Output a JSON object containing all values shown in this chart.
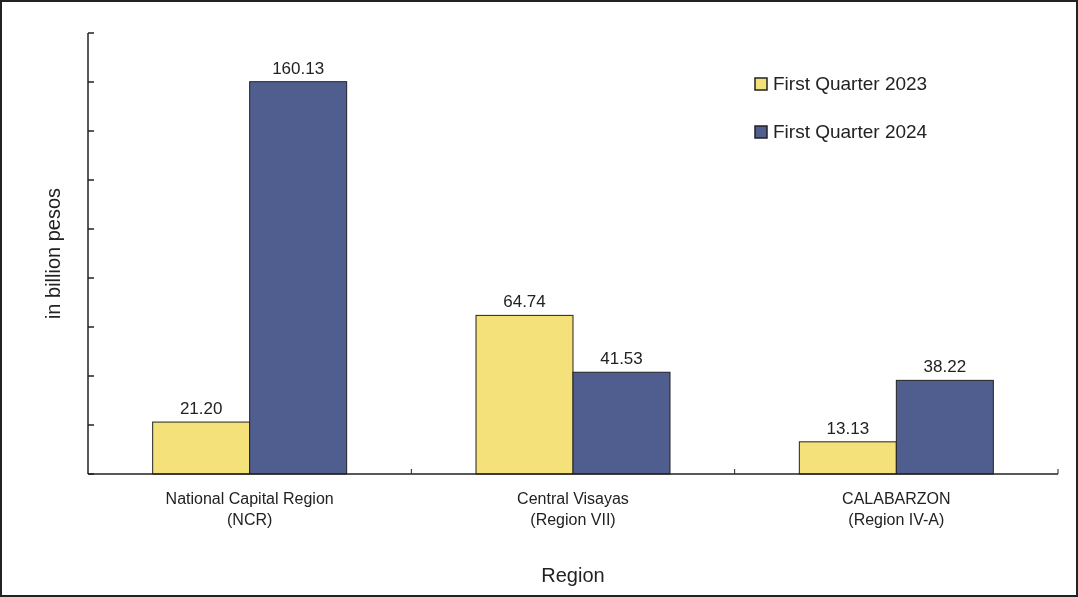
{
  "chart_data": {
    "type": "bar",
    "xlabel": "Region",
    "ylabel": "in billion pesos",
    "categories": [
      "National Capital Region\n(NCR)",
      "Central Visayas\n(Region VII)",
      "CALABARZON\n(Region IV-A)"
    ],
    "series": [
      {
        "name": "First Quarter 2023",
        "color": "#f5e17a",
        "values": [
          21.2,
          64.74,
          13.13
        ],
        "value_labels": [
          "21.20",
          "64.74",
          "13.13"
        ]
      },
      {
        "name": "First Quarter 2024",
        "color": "#4f5e8e",
        "values": [
          160.13,
          41.53,
          38.22
        ],
        "value_labels": [
          "160.13",
          "41.53",
          "38.22"
        ]
      }
    ],
    "ylim": [
      0,
      180
    ],
    "yticks": [
      {
        "value": 0,
        "label": null
      },
      {
        "value": 20,
        "label": null
      },
      {
        "value": 40,
        "label": null
      },
      {
        "value": 60,
        "label": null
      },
      {
        "value": 80,
        "label": null
      },
      {
        "value": 100,
        "label": null
      },
      {
        "value": 120,
        "label": null
      },
      {
        "value": 140,
        "label": null
      },
      {
        "value": 160,
        "label": null
      },
      {
        "value": 180,
        "label": null
      }
    ],
    "tick_labels": "x",
    "grid": false,
    "legend": "top right"
  }
}
